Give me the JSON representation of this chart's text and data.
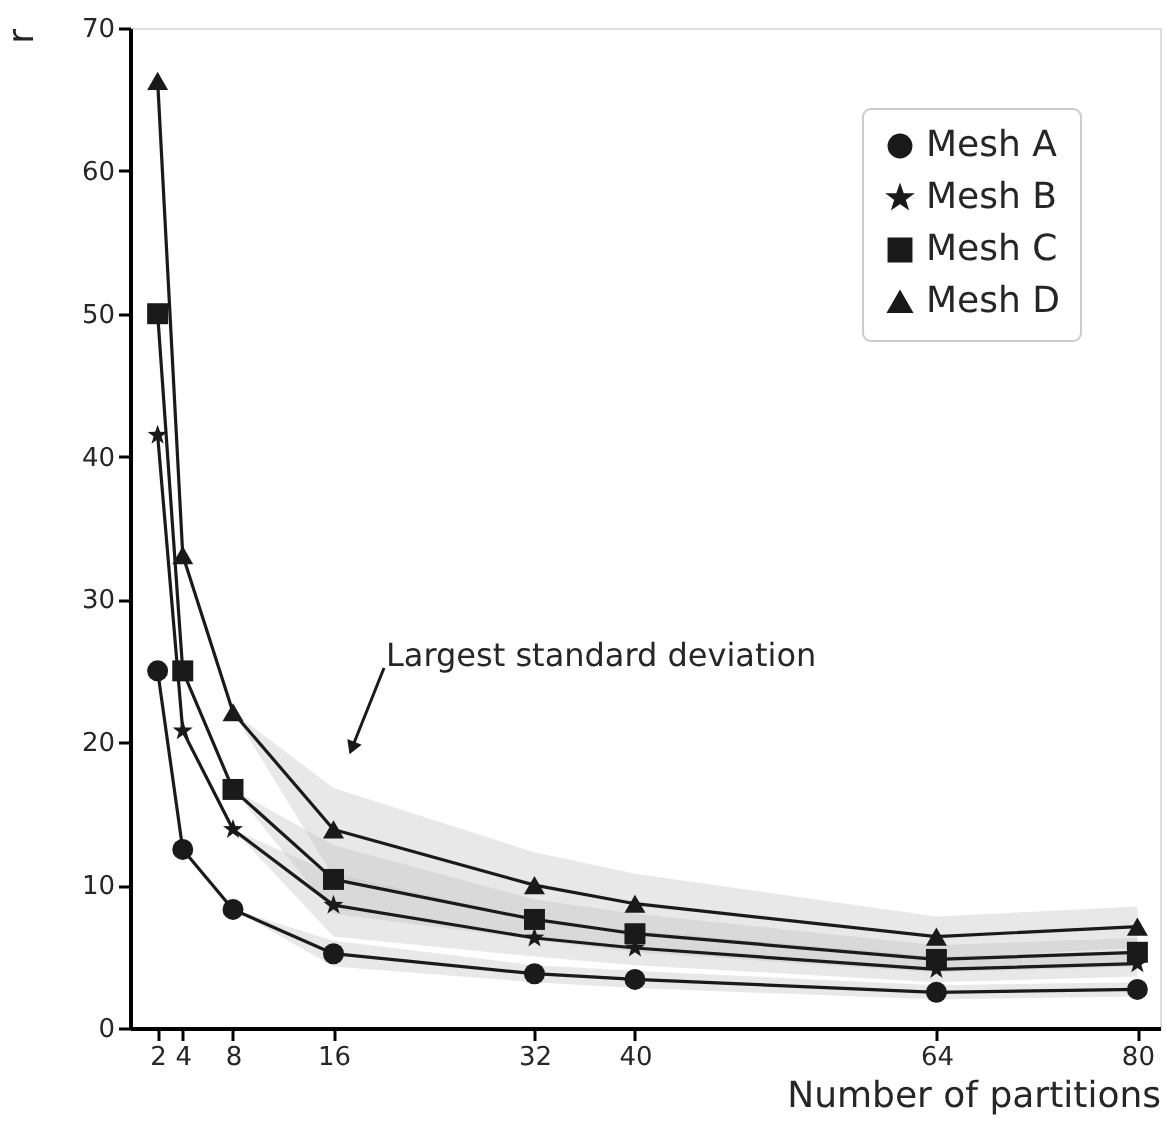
{
  "chart_data": {
    "type": "line",
    "xlabel": "Number of partitions",
    "ylabel": "r",
    "x": [
      2,
      4,
      8,
      16,
      32,
      40,
      64,
      80
    ],
    "xlim": [
      -0.2,
      81.8
    ],
    "xticks": [
      2,
      4,
      8,
      16,
      32,
      40,
      64,
      80
    ],
    "ylim": [
      0,
      70
    ],
    "yticks": [
      0,
      10,
      20,
      30,
      40,
      50,
      60,
      70
    ],
    "grid": false,
    "legend": "top right",
    "line_style": "solid",
    "series": [
      {
        "name": "Mesh A",
        "color": "#1a1a1a",
        "marker": "circle",
        "values": [
          25.0,
          12.5,
          8.3,
          5.2,
          3.8,
          3.4,
          2.5,
          2.7
        ],
        "lower": [
          25.0,
          12.5,
          8.3,
          4.3,
          3.2,
          2.8,
          2.0,
          2.2
        ],
        "upper": [
          25.0,
          12.5,
          8.3,
          6.1,
          4.4,
          4.0,
          3.0,
          3.2
        ]
      },
      {
        "name": "Mesh B",
        "color": "#1a1a1a",
        "marker": "star",
        "values": [
          41.5,
          20.8,
          13.9,
          8.6,
          6.3,
          5.6,
          4.1,
          4.5
        ],
        "lower": [
          41.5,
          20.8,
          13.9,
          6.4,
          5.0,
          4.4,
          3.2,
          3.6
        ],
        "upper": [
          41.5,
          20.8,
          13.9,
          10.8,
          7.6,
          6.8,
          5.0,
          5.4
        ]
      },
      {
        "name": "Mesh C",
        "color": "#1a1a1a",
        "marker": "square",
        "values": [
          50.0,
          25.0,
          16.7,
          10.4,
          7.6,
          6.6,
          4.8,
          5.3
        ],
        "lower": [
          50.0,
          25.0,
          16.7,
          8.0,
          6.2,
          5.3,
          3.9,
          4.3
        ],
        "upper": [
          50.0,
          25.0,
          16.7,
          12.8,
          9.0,
          8.0,
          5.8,
          6.3
        ]
      },
      {
        "name": "Mesh D",
        "color": "#1a1a1a",
        "marker": "triangle",
        "values": [
          66.3,
          33.1,
          22.1,
          13.9,
          10.0,
          8.7,
          6.4,
          7.1
        ],
        "lower": [
          66.3,
          33.1,
          22.1,
          10.6,
          7.7,
          6.6,
          4.9,
          5.6
        ],
        "upper": [
          66.3,
          33.1,
          22.1,
          16.8,
          12.3,
          10.8,
          7.8,
          8.5
        ]
      }
    ],
    "annotations": [
      "Largest standard deviation"
    ]
  }
}
